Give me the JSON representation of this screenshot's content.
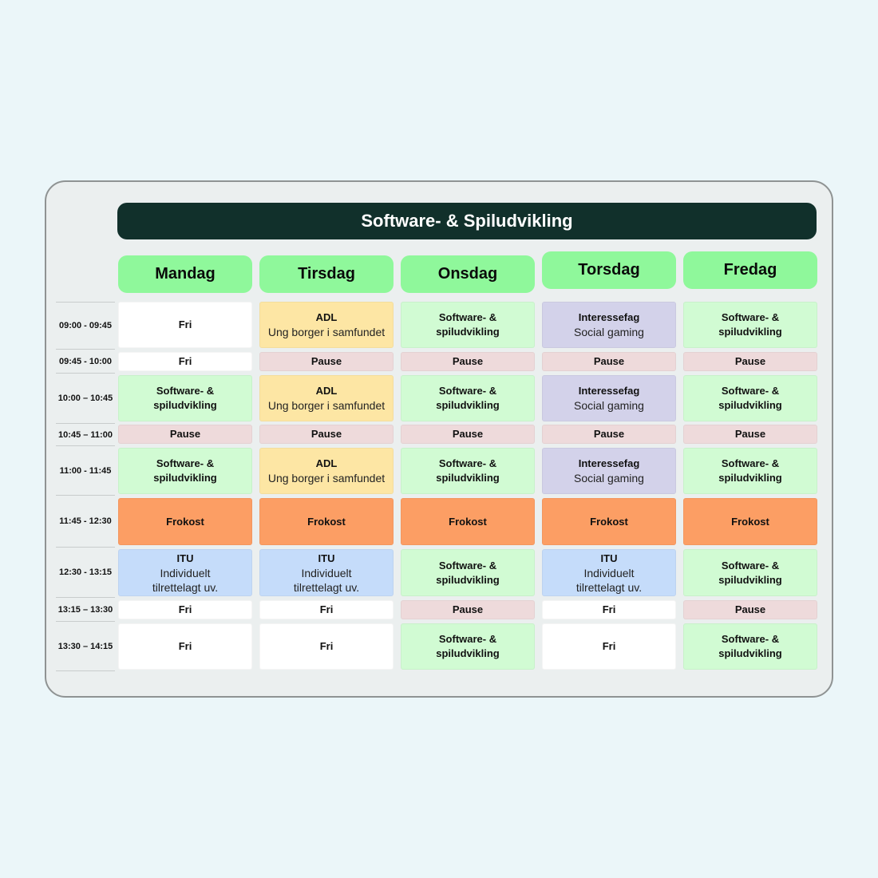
{
  "title": "Software- & Spiludvikling",
  "days": [
    "Mandag",
    "Tirsdag",
    "Onsdag",
    "Torsdag",
    "Fredag"
  ],
  "times": [
    "09:00 - 09:45",
    "09:45 - 10:00",
    "10:00 – 10:45",
    "10:45 – 11:00",
    "11:00 - 11:45",
    "11:45 - 12:30",
    "12:30 - 13:15",
    "13:15 – 13:30",
    "13:30 – 14:15"
  ],
  "colors": {
    "background": "#ebf6f9",
    "title_bar": "#11302b",
    "day_header": "#8ff89b",
    "free": "#ffffff",
    "software": "#d1fbd3",
    "pause": "#eedadb",
    "adl": "#fde6a4",
    "interest": "#d3d2ea",
    "lunch": "#fc9e64",
    "itu": "#c5dcfa"
  },
  "schedule": [
    [
      {
        "title": "Fri",
        "sub": "",
        "color": "#ffffff"
      },
      {
        "title": "ADL",
        "sub": "Ung borger i samfundet",
        "color": "#fde6a4"
      },
      {
        "title": "Software- &\nspiludvikling",
        "sub": "",
        "color": "#d1fbd3"
      },
      {
        "title": "Interessefag",
        "sub": "Social gaming",
        "color": "#d3d2ea"
      },
      {
        "title": "Software- &\nspiludvikling",
        "sub": "",
        "color": "#d1fbd3"
      }
    ],
    [
      {
        "title": "Fri",
        "sub": "",
        "color": "#ffffff"
      },
      {
        "title": "Pause",
        "sub": "",
        "color": "#eedadb"
      },
      {
        "title": "Pause",
        "sub": "",
        "color": "#eedadb"
      },
      {
        "title": "Pause",
        "sub": "",
        "color": "#eedadb"
      },
      {
        "title": "Pause",
        "sub": "",
        "color": "#eedadb"
      }
    ],
    [
      {
        "title": "Software- &\nspiludvikling",
        "sub": "",
        "color": "#d1fbd3"
      },
      {
        "title": "ADL",
        "sub": "Ung borger i samfundet",
        "color": "#fde6a4"
      },
      {
        "title": "Software- &\nspiludvikling",
        "sub": "",
        "color": "#d1fbd3"
      },
      {
        "title": "Interessefag",
        "sub": "Social gaming",
        "color": "#d3d2ea"
      },
      {
        "title": "Software- &\nspiludvikling",
        "sub": "",
        "color": "#d1fbd3"
      }
    ],
    [
      {
        "title": "Pause",
        "sub": "",
        "color": "#eedadb"
      },
      {
        "title": "Pause",
        "sub": "",
        "color": "#eedadb"
      },
      {
        "title": "Pause",
        "sub": "",
        "color": "#eedadb"
      },
      {
        "title": "Pause",
        "sub": "",
        "color": "#eedadb"
      },
      {
        "title": "Pause",
        "sub": "",
        "color": "#eedadb"
      }
    ],
    [
      {
        "title": "Software- &\nspiludvikling",
        "sub": "",
        "color": "#d1fbd3"
      },
      {
        "title": "ADL",
        "sub": "Ung borger i samfundet",
        "color": "#fde6a4"
      },
      {
        "title": "Software- &\nspiludvikling",
        "sub": "",
        "color": "#d1fbd3"
      },
      {
        "title": "Interessefag",
        "sub": "Social gaming",
        "color": "#d3d2ea"
      },
      {
        "title": "Software- &\nspiludvikling",
        "sub": "",
        "color": "#d1fbd3"
      }
    ],
    [
      {
        "title": "Frokost",
        "sub": "",
        "color": "#fc9e64"
      },
      {
        "title": "Frokost",
        "sub": "",
        "color": "#fc9e64"
      },
      {
        "title": "Frokost",
        "sub": "",
        "color": "#fc9e64"
      },
      {
        "title": "Frokost",
        "sub": "",
        "color": "#fc9e64"
      },
      {
        "title": "Frokost",
        "sub": "",
        "color": "#fc9e64"
      }
    ],
    [
      {
        "title": "ITU",
        "sub": "Individuelt\ntilrettelagt uv.",
        "color": "#c5dcfa"
      },
      {
        "title": "ITU",
        "sub": "Individuelt\ntilrettelagt uv.",
        "color": "#c5dcfa"
      },
      {
        "title": "Software- &\nspiludvikling",
        "sub": "",
        "color": "#d1fbd3"
      },
      {
        "title": "ITU",
        "sub": "Individuelt\ntilrettelagt uv.",
        "color": "#c5dcfa"
      },
      {
        "title": "Software- &\nspiludvikling",
        "sub": "",
        "color": "#d1fbd3"
      }
    ],
    [
      {
        "title": "Fri",
        "sub": "",
        "color": "#ffffff"
      },
      {
        "title": "Fri",
        "sub": "",
        "color": "#ffffff"
      },
      {
        "title": "Pause",
        "sub": "",
        "color": "#eedadb"
      },
      {
        "title": "Fri",
        "sub": "",
        "color": "#ffffff"
      },
      {
        "title": "Pause",
        "sub": "",
        "color": "#eedadb"
      }
    ],
    [
      {
        "title": "Fri",
        "sub": "",
        "color": "#ffffff"
      },
      {
        "title": "Fri",
        "sub": "",
        "color": "#ffffff"
      },
      {
        "title": "Software- &\nspiludvikling",
        "sub": "",
        "color": "#d1fbd3"
      },
      {
        "title": "Fri",
        "sub": "",
        "color": "#ffffff"
      },
      {
        "title": "Software- &\nspiludvikling",
        "sub": "",
        "color": "#d1fbd3"
      }
    ]
  ]
}
